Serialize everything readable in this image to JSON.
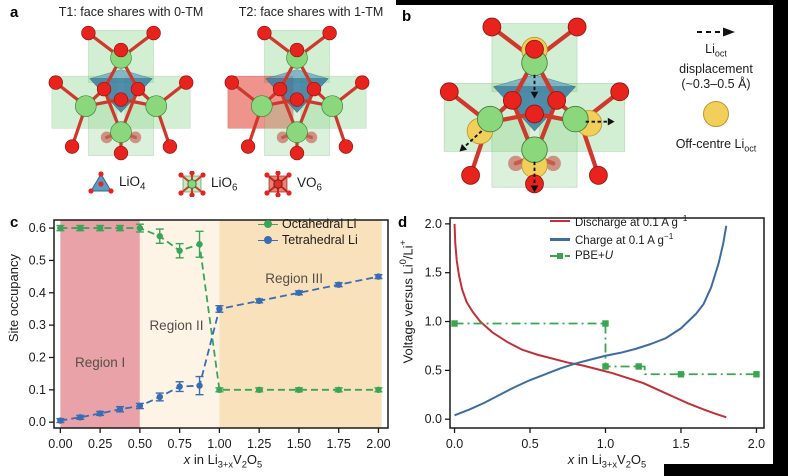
{
  "panels": {
    "a": {
      "label": "a",
      "t1_title": "T1: face shares with 0-TM",
      "t2_title": "T2: face shares with 1-TM",
      "legend": {
        "lio4": {
          "text": "LiO",
          "sub": "4"
        },
        "lio6": {
          "text": "LiO",
          "sub": "6"
        },
        "vo6": {
          "text": "VO",
          "sub": "6"
        }
      }
    },
    "b": {
      "label": "b",
      "displacement": {
        "li": "Li",
        "sub": "oct",
        "line2": "displacement",
        "line3": "(~0.3–0.5 Å)"
      },
      "off_centre": {
        "pre": "Off-centre Li",
        "sub": "oct"
      }
    },
    "c": {
      "label": "c"
    },
    "d": {
      "label": "d"
    }
  },
  "colors": {
    "oxygen_red": "#e8231e",
    "lithium_green": "#8bd87c",
    "off_centre_yellow": "#f2cf5b",
    "lio4_tetrahedron_blue": "#5a9ec4",
    "vo6_octahedron_red": "#e35548"
  },
  "chart_data": [
    {
      "type": "line",
      "panel": "c",
      "ylabel": "Site occupancy",
      "xlabel_parts": {
        "x": "x",
        "mid": " in Li",
        "sub1": "3+x",
        "v": "V",
        "sub2": "2",
        "o": "O",
        "sub3": "5"
      },
      "xlim": [
        -0.04,
        2.06
      ],
      "ylim": [
        -0.018,
        0.625
      ],
      "xticks": [
        0,
        0.25,
        0.5,
        0.75,
        1.0,
        1.25,
        1.5,
        1.75,
        2.0
      ],
      "xtick_labels": [
        "0.00",
        "0.25",
        "0.50",
        "0.75",
        "1.00",
        "1.25",
        "1.50",
        "1.75",
        "2.00"
      ],
      "yticks": [
        0,
        0.1,
        0.2,
        0.3,
        0.4,
        0.5,
        0.6
      ],
      "ytick_labels": [
        "0.0",
        "0.1",
        "0.2",
        "0.3",
        "0.4",
        "0.5",
        "0.6"
      ],
      "grid": false,
      "legend_position": "upper right",
      "regions": [
        {
          "label": "Region I",
          "x0": 0.0,
          "x1": 0.5,
          "color": "#e9a2a8",
          "label_x": 0.25,
          "label_y": 0.17
        },
        {
          "label": "Region II",
          "x0": 0.5,
          "x1": 1.0,
          "color": "#fdf4e6",
          "label_x": 0.73,
          "label_y": 0.285
        },
        {
          "label": "Region III",
          "x0": 1.0,
          "x1": 2.02,
          "color": "#f8e1bb",
          "label_x": 1.47,
          "label_y": 0.43
        }
      ],
      "series": [
        {
          "name": "Octahedral Li",
          "color": "#3aa558",
          "dash": "7 4",
          "marker": "circle",
          "x": [
            0,
            0.125,
            0.25,
            0.375,
            0.5,
            0.625,
            0.75,
            0.875,
            1.0,
            1.25,
            1.5,
            1.75,
            2.0
          ],
          "y": [
            0.6,
            0.6,
            0.6,
            0.6,
            0.6,
            0.575,
            0.53,
            0.55,
            0.1,
            0.1,
            0.1,
            0.1,
            0.1
          ],
          "err": [
            0.008,
            0.008,
            0.008,
            0.008,
            0.012,
            0.022,
            0.022,
            0.04,
            0.006,
            0.006,
            0.006,
            0.006,
            0.006
          ]
        },
        {
          "name": "Tetrahedral Li",
          "color": "#3a6cb4",
          "dash": "7 4",
          "marker": "circle",
          "x": [
            0,
            0.125,
            0.25,
            0.375,
            0.5,
            0.625,
            0.75,
            0.875,
            1.0,
            1.25,
            1.5,
            1.75,
            2.0
          ],
          "y": [
            0.005,
            0.015,
            0.027,
            0.04,
            0.05,
            0.078,
            0.11,
            0.113,
            0.35,
            0.375,
            0.4,
            0.425,
            0.45
          ],
          "err": [
            0.006,
            0.006,
            0.006,
            0.008,
            0.008,
            0.012,
            0.015,
            0.028,
            0.01,
            0.006,
            0.006,
            0.006,
            0.006
          ]
        }
      ]
    },
    {
      "type": "line",
      "panel": "d",
      "ylabel_parts": {
        "pre": "Voltage versus Li",
        "sup1": "0",
        "mid": "/Li",
        "sup2": "+"
      },
      "xlabel_parts": {
        "x": "x",
        "mid": " in Li",
        "sub1": "3+x",
        "v": "V",
        "sub2": "2",
        "o": "O",
        "sub3": "5"
      },
      "xlim": [
        -0.03,
        2.05
      ],
      "ylim": [
        -0.09,
        2.06
      ],
      "xticks": [
        0,
        0.5,
        1.0,
        1.5,
        2.0
      ],
      "xtick_labels": [
        "0.0",
        "0.5",
        "1.0",
        "1.5",
        "2.0"
      ],
      "yticks": [
        0,
        0.5,
        1.0,
        1.5,
        2.0
      ],
      "ytick_labels": [
        "0.0",
        "0.5",
        "1.0",
        "1.5",
        "2.0"
      ],
      "grid": false,
      "legend_position": "upper right",
      "series": [
        {
          "name_parts": {
            "pre": "Discharge at 0.1 A g",
            "sup": "−1"
          },
          "color": "#c13038",
          "width": 2,
          "x": [
            0,
            0.005,
            0.015,
            0.03,
            0.05,
            0.08,
            0.12,
            0.17,
            0.25,
            0.35,
            0.45,
            0.55,
            0.65,
            0.75,
            0.85,
            0.95,
            1.05,
            1.15,
            1.25,
            1.35,
            1.45,
            1.55,
            1.65,
            1.72,
            1.78,
            1.8
          ],
          "y": [
            2.0,
            1.8,
            1.62,
            1.47,
            1.33,
            1.2,
            1.1,
            1.0,
            0.89,
            0.79,
            0.71,
            0.66,
            0.62,
            0.58,
            0.55,
            0.51,
            0.47,
            0.42,
            0.37,
            0.3,
            0.23,
            0.16,
            0.1,
            0.06,
            0.03,
            0.02
          ]
        },
        {
          "name_parts": {
            "pre": "Charge at 0.1 A g",
            "sup": "−1"
          },
          "color": "#3d6d9e",
          "width": 2,
          "x": [
            0,
            0.1,
            0.2,
            0.3,
            0.4,
            0.5,
            0.6,
            0.7,
            0.8,
            0.9,
            1.0,
            1.1,
            1.2,
            1.3,
            1.4,
            1.5,
            1.6,
            1.65,
            1.7,
            1.75,
            1.78,
            1.8
          ],
          "y": [
            0.04,
            0.1,
            0.17,
            0.25,
            0.33,
            0.4,
            0.46,
            0.52,
            0.57,
            0.61,
            0.65,
            0.68,
            0.72,
            0.77,
            0.83,
            0.93,
            1.08,
            1.18,
            1.35,
            1.6,
            1.8,
            1.98
          ]
        },
        {
          "name_parts": {
            "pre": "PBE+",
            "it": "U"
          },
          "color": "#3aa54f",
          "width": 1.8,
          "dash": "9 4 2 4",
          "marker": "square",
          "x": [
            0,
            1.0,
            1.0,
            1.26,
            1.26,
            2.0
          ],
          "y": [
            0.98,
            0.98,
            0.54,
            0.54,
            0.46,
            0.46
          ],
          "marker_x": [
            0,
            1.0,
            1.0,
            1.22,
            1.5,
            2.0
          ],
          "marker_y": [
            0.98,
            0.98,
            0.54,
            0.54,
            0.46,
            0.46
          ]
        }
      ]
    }
  ]
}
